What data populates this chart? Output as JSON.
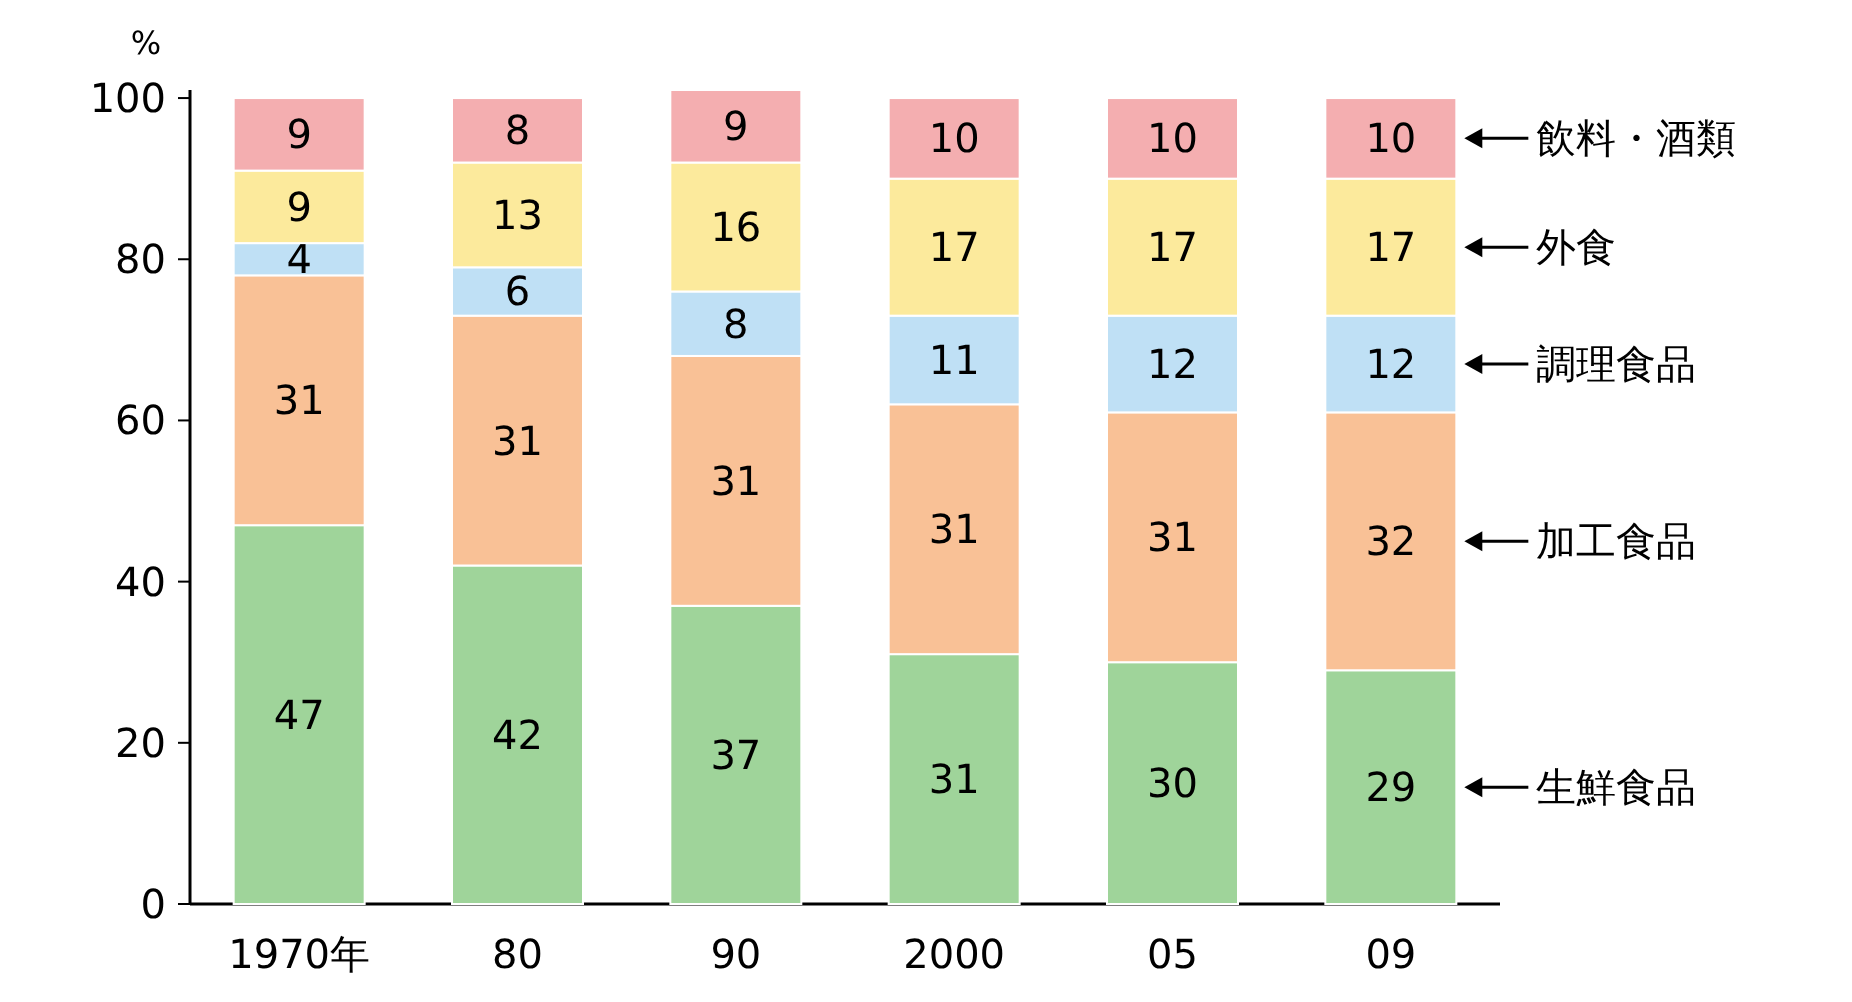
{
  "chart_data": {
    "type": "bar",
    "stacked": true,
    "data_labels": true,
    "legend": "right",
    "ylabel": "%",
    "categories": [
      "1970年",
      "80",
      "90",
      "2000",
      "05",
      "09"
    ],
    "ylim": [
      0,
      101
    ],
    "yticks": [
      0,
      20,
      40,
      60,
      80,
      100
    ],
    "series": [
      {
        "name": "生鮮食品",
        "color": "#9fd49a",
        "values": [
          47,
          42,
          37,
          31,
          30,
          29
        ]
      },
      {
        "name": "加工食品",
        "color": "#f9c196",
        "values": [
          31,
          31,
          31,
          31,
          31,
          32
        ]
      },
      {
        "name": "調理食品",
        "color": "#bfe0f5",
        "values": [
          4,
          6,
          8,
          11,
          12,
          12
        ]
      },
      {
        "name": "外食",
        "color": "#fcea9c",
        "values": [
          9,
          13,
          16,
          17,
          17,
          17
        ]
      },
      {
        "name": "飲料・酒類",
        "color": "#f4aeb0",
        "values": [
          9,
          8,
          9,
          10,
          10,
          10
        ]
      }
    ]
  }
}
